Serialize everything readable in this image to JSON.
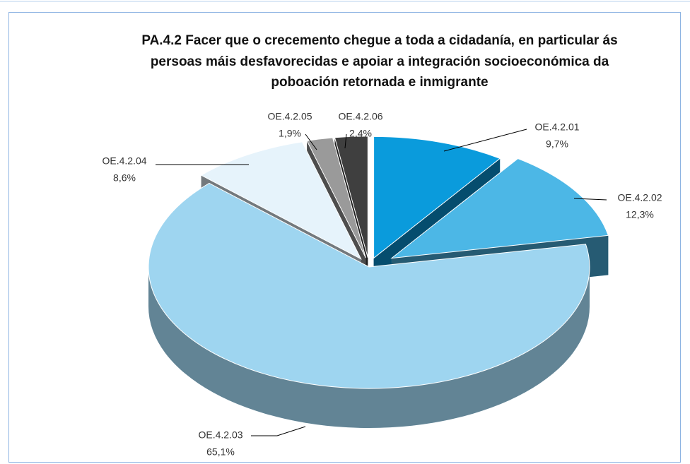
{
  "chart_data": {
    "type": "pie",
    "title": [
      "PA.4.2 Facer que o crecemento chegue a toda a cidadanía, en particular ás",
      "persoas máis desfavorecidas e apoiar a integración socioeconómica da",
      "poboación retornada e inmigrante"
    ],
    "categories": [
      "OE.4.2.01",
      "OE.4.2.02",
      "OE.4.2.03",
      "OE.4.2.04",
      "OE.4.2.05",
      "OE.4.2.06"
    ],
    "values": [
      9.7,
      12.3,
      65.1,
      8.6,
      1.9,
      2.4
    ],
    "value_labels": [
      "9,7%",
      "12,3%",
      "65,1%",
      "8,6%",
      "1,9%",
      "2,4%"
    ],
    "colors": [
      "#0a9bdc",
      "#4cb7e6",
      "#9ed5f0",
      "#e6f3fb",
      "#9a9a9a",
      "#3f3f3f"
    ]
  }
}
